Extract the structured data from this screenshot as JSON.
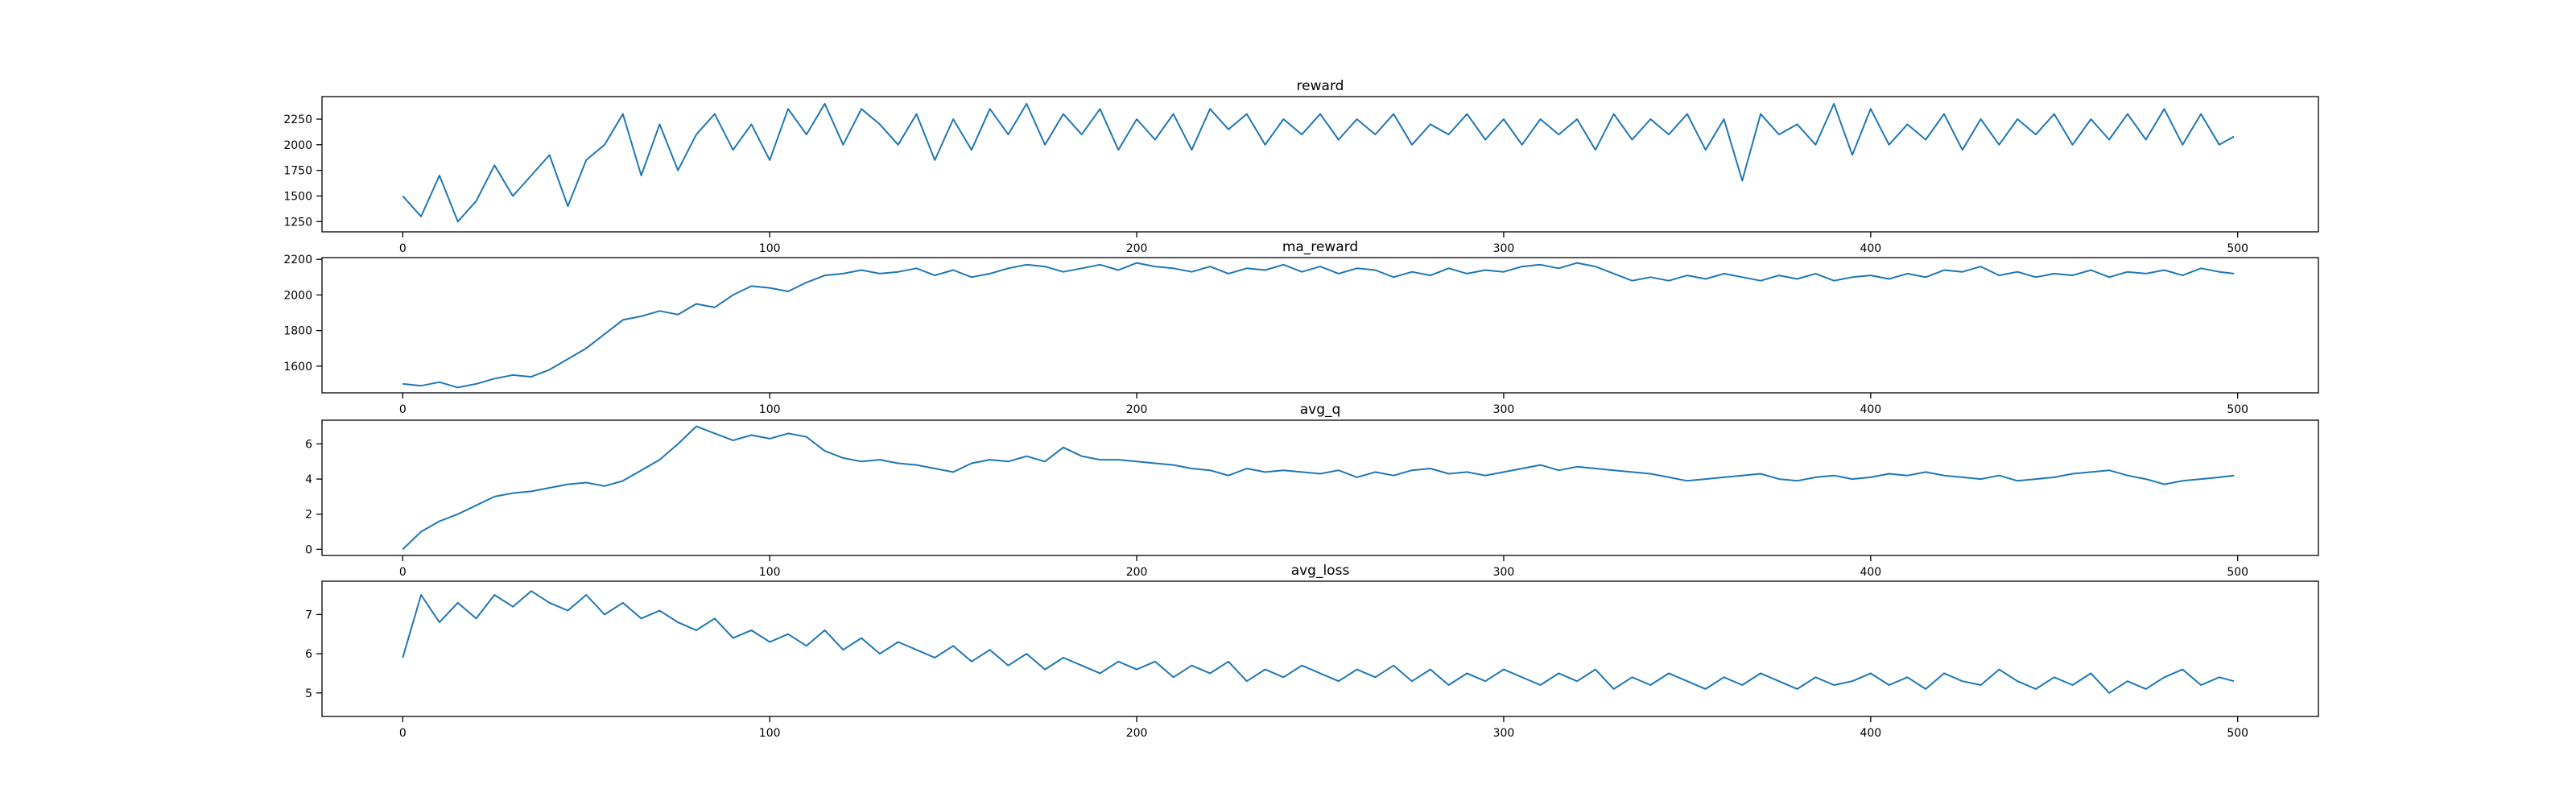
{
  "chart_data": [
    {
      "type": "line",
      "title": "reward",
      "xlabel": "",
      "ylabel": "",
      "xlim": [
        -22,
        522
      ],
      "ylim": [
        1150,
        2470
      ],
      "xticks": [
        0,
        100,
        200,
        300,
        400,
        500
      ],
      "xtick_labels": [
        "0",
        "100",
        "200",
        "300",
        "400",
        "500"
      ],
      "yticks": [
        1250,
        1500,
        1750,
        2000,
        2250
      ],
      "ytick_labels": [
        "1250",
        "1500",
        "1750",
        "2000",
        "2250"
      ],
      "grid": false,
      "color": "#1f77b4",
      "x": [
        0,
        5,
        10,
        15,
        20,
        25,
        30,
        35,
        40,
        45,
        50,
        55,
        60,
        65,
        70,
        75,
        80,
        85,
        90,
        95,
        100,
        105,
        110,
        115,
        120,
        125,
        130,
        135,
        140,
        145,
        150,
        155,
        160,
        165,
        170,
        175,
        180,
        185,
        190,
        195,
        200,
        205,
        210,
        215,
        220,
        225,
        230,
        235,
        240,
        245,
        250,
        255,
        260,
        265,
        270,
        275,
        280,
        285,
        290,
        295,
        300,
        305,
        310,
        315,
        320,
        325,
        330,
        335,
        340,
        345,
        350,
        355,
        360,
        365,
        370,
        375,
        380,
        385,
        390,
        395,
        400,
        405,
        410,
        415,
        420,
        425,
        430,
        435,
        440,
        445,
        450,
        455,
        460,
        465,
        470,
        475,
        480,
        485,
        490,
        495,
        499
      ],
      "values": [
        1500,
        1300,
        1700,
        1250,
        1450,
        1800,
        1500,
        1700,
        1900,
        1400,
        1850,
        2000,
        2300,
        1700,
        2200,
        1750,
        2100,
        2300,
        1950,
        2200,
        1850,
        2350,
        2100,
        2400,
        2000,
        2350,
        2200,
        2000,
        2300,
        1850,
        2250,
        1950,
        2350,
        2100,
        2400,
        2000,
        2300,
        2100,
        2350,
        1950,
        2250,
        2050,
        2300,
        1950,
        2350,
        2150,
        2300,
        2000,
        2250,
        2100,
        2300,
        2050,
        2250,
        2100,
        2300,
        2000,
        2200,
        2100,
        2300,
        2050,
        2250,
        2000,
        2250,
        2100,
        2250,
        1950,
        2300,
        2050,
        2250,
        2100,
        2300,
        1950,
        2250,
        1650,
        2300,
        2100,
        2200,
        2000,
        2400,
        1900,
        2350,
        2000,
        2200,
        2050,
        2300,
        1950,
        2250,
        2000,
        2250,
        2100,
        2300,
        2000,
        2250,
        2050,
        2300,
        2050,
        2350,
        2000,
        2300,
        2000,
        2080
      ]
    },
    {
      "type": "line",
      "title": "ma_reward",
      "xlabel": "",
      "ylabel": "",
      "xlim": [
        -22,
        522
      ],
      "ylim": [
        1450,
        2210
      ],
      "xticks": [
        0,
        100,
        200,
        300,
        400,
        500
      ],
      "xtick_labels": [
        "0",
        "100",
        "200",
        "300",
        "400",
        "500"
      ],
      "yticks": [
        1600,
        1800,
        2000,
        2200
      ],
      "ytick_labels": [
        "1600",
        "1800",
        "2000",
        "2200"
      ],
      "grid": false,
      "color": "#1f77b4",
      "x": [
        0,
        5,
        10,
        15,
        20,
        25,
        30,
        35,
        40,
        45,
        50,
        55,
        60,
        65,
        70,
        75,
        80,
        85,
        90,
        95,
        100,
        105,
        110,
        115,
        120,
        125,
        130,
        135,
        140,
        145,
        150,
        155,
        160,
        165,
        170,
        175,
        180,
        185,
        190,
        195,
        200,
        205,
        210,
        215,
        220,
        225,
        230,
        235,
        240,
        245,
        250,
        255,
        260,
        265,
        270,
        275,
        280,
        285,
        290,
        295,
        300,
        305,
        310,
        315,
        320,
        325,
        330,
        335,
        340,
        345,
        350,
        355,
        360,
        365,
        370,
        375,
        380,
        385,
        390,
        395,
        400,
        405,
        410,
        415,
        420,
        425,
        430,
        435,
        440,
        445,
        450,
        455,
        460,
        465,
        470,
        475,
        480,
        485,
        490,
        495,
        499
      ],
      "values": [
        1500,
        1490,
        1510,
        1480,
        1500,
        1530,
        1550,
        1540,
        1580,
        1640,
        1700,
        1780,
        1860,
        1880,
        1910,
        1890,
        1950,
        1930,
        2000,
        2050,
        2040,
        2020,
        2070,
        2110,
        2120,
        2140,
        2120,
        2130,
        2150,
        2110,
        2140,
        2100,
        2120,
        2150,
        2170,
        2160,
        2130,
        2150,
        2170,
        2140,
        2180,
        2160,
        2150,
        2130,
        2160,
        2120,
        2150,
        2140,
        2170,
        2130,
        2160,
        2120,
        2150,
        2140,
        2100,
        2130,
        2110,
        2150,
        2120,
        2140,
        2130,
        2160,
        2170,
        2150,
        2180,
        2160,
        2120,
        2080,
        2100,
        2080,
        2110,
        2090,
        2120,
        2100,
        2080,
        2110,
        2090,
        2120,
        2080,
        2100,
        2110,
        2090,
        2120,
        2100,
        2140,
        2130,
        2160,
        2110,
        2130,
        2100,
        2120,
        2110,
        2140,
        2100,
        2130,
        2120,
        2140,
        2110,
        2150,
        2130,
        2120
      ]
    },
    {
      "type": "line",
      "title": "avg_q",
      "xlabel": "",
      "ylabel": "",
      "xlim": [
        -22,
        522
      ],
      "ylim": [
        -0.35,
        7.35
      ],
      "xticks": [
        0,
        100,
        200,
        300,
        400,
        500
      ],
      "xtick_labels": [
        "0",
        "100",
        "200",
        "300",
        "400",
        "500"
      ],
      "yticks": [
        0,
        2,
        4,
        6
      ],
      "ytick_labels": [
        "0",
        "2",
        "4",
        "6"
      ],
      "grid": false,
      "color": "#1f77b4",
      "x": [
        0,
        5,
        10,
        15,
        20,
        25,
        30,
        35,
        40,
        45,
        50,
        55,
        60,
        65,
        70,
        75,
        80,
        85,
        90,
        95,
        100,
        105,
        110,
        115,
        120,
        125,
        130,
        135,
        140,
        145,
        150,
        155,
        160,
        165,
        170,
        175,
        180,
        185,
        190,
        195,
        200,
        205,
        210,
        215,
        220,
        225,
        230,
        235,
        240,
        245,
        250,
        255,
        260,
        265,
        270,
        275,
        280,
        285,
        290,
        295,
        300,
        305,
        310,
        315,
        320,
        325,
        330,
        335,
        340,
        345,
        350,
        355,
        360,
        365,
        370,
        375,
        380,
        385,
        390,
        395,
        400,
        405,
        410,
        415,
        420,
        425,
        430,
        435,
        440,
        445,
        450,
        455,
        460,
        465,
        470,
        475,
        480,
        485,
        490,
        495,
        499
      ],
      "values": [
        0.0,
        1.0,
        1.6,
        2.0,
        2.5,
        3.0,
        3.2,
        3.3,
        3.5,
        3.7,
        3.8,
        3.6,
        3.9,
        4.5,
        5.1,
        6.0,
        7.0,
        6.6,
        6.2,
        6.5,
        6.3,
        6.6,
        6.4,
        5.6,
        5.2,
        5.0,
        5.1,
        4.9,
        4.8,
        4.6,
        4.4,
        4.9,
        5.1,
        5.0,
        5.3,
        5.0,
        5.8,
        5.3,
        5.1,
        5.1,
        5.0,
        4.9,
        4.8,
        4.6,
        4.5,
        4.2,
        4.6,
        4.4,
        4.5,
        4.4,
        4.3,
        4.5,
        4.1,
        4.4,
        4.2,
        4.5,
        4.6,
        4.3,
        4.4,
        4.2,
        4.4,
        4.6,
        4.8,
        4.5,
        4.7,
        4.6,
        4.5,
        4.4,
        4.3,
        4.1,
        3.9,
        4.0,
        4.1,
        4.2,
        4.3,
        4.0,
        3.9,
        4.1,
        4.2,
        4.0,
        4.1,
        4.3,
        4.2,
        4.4,
        4.2,
        4.1,
        4.0,
        4.2,
        3.9,
        4.0,
        4.1,
        4.3,
        4.4,
        4.5,
        4.2,
        4.0,
        3.7,
        3.9,
        4.0,
        4.1,
        4.2
      ]
    },
    {
      "type": "line",
      "title": "avg_loss",
      "xlabel": "",
      "ylabel": "",
      "xlim": [
        -22,
        522
      ],
      "ylim": [
        4.4,
        7.85
      ],
      "xticks": [
        0,
        100,
        200,
        300,
        400,
        500
      ],
      "xtick_labels": [
        "0",
        "100",
        "200",
        "300",
        "400",
        "500"
      ],
      "yticks": [
        5,
        6,
        7
      ],
      "ytick_labels": [
        "5",
        "6",
        "7"
      ],
      "grid": false,
      "color": "#1f77b4",
      "x": [
        0,
        5,
        10,
        15,
        20,
        25,
        30,
        35,
        40,
        45,
        50,
        55,
        60,
        65,
        70,
        75,
        80,
        85,
        90,
        95,
        100,
        105,
        110,
        115,
        120,
        125,
        130,
        135,
        140,
        145,
        150,
        155,
        160,
        165,
        170,
        175,
        180,
        185,
        190,
        195,
        200,
        205,
        210,
        215,
        220,
        225,
        230,
        235,
        240,
        245,
        250,
        255,
        260,
        265,
        270,
        275,
        280,
        285,
        290,
        295,
        300,
        305,
        310,
        315,
        320,
        325,
        330,
        335,
        340,
        345,
        350,
        355,
        360,
        365,
        370,
        375,
        380,
        385,
        390,
        395,
        400,
        405,
        410,
        415,
        420,
        425,
        430,
        435,
        440,
        445,
        450,
        455,
        460,
        465,
        470,
        475,
        480,
        485,
        490,
        495,
        499
      ],
      "values": [
        5.9,
        7.5,
        6.8,
        7.3,
        6.9,
        7.5,
        7.2,
        7.6,
        7.3,
        7.1,
        7.5,
        7.0,
        7.3,
        6.9,
        7.1,
        6.8,
        6.6,
        6.9,
        6.4,
        6.6,
        6.3,
        6.5,
        6.2,
        6.6,
        6.1,
        6.4,
        6.0,
        6.3,
        6.1,
        5.9,
        6.2,
        5.8,
        6.1,
        5.7,
        6.0,
        5.6,
        5.9,
        5.7,
        5.5,
        5.8,
        5.6,
        5.8,
        5.4,
        5.7,
        5.5,
        5.8,
        5.3,
        5.6,
        5.4,
        5.7,
        5.5,
        5.3,
        5.6,
        5.4,
        5.7,
        5.3,
        5.6,
        5.2,
        5.5,
        5.3,
        5.6,
        5.4,
        5.2,
        5.5,
        5.3,
        5.6,
        5.1,
        5.4,
        5.2,
        5.5,
        5.3,
        5.1,
        5.4,
        5.2,
        5.5,
        5.3,
        5.1,
        5.4,
        5.2,
        5.3,
        5.5,
        5.2,
        5.4,
        5.1,
        5.5,
        5.3,
        5.2,
        5.6,
        5.3,
        5.1,
        5.4,
        5.2,
        5.5,
        5.0,
        5.3,
        5.1,
        5.4,
        5.6,
        5.2,
        5.4,
        5.3
      ]
    }
  ]
}
